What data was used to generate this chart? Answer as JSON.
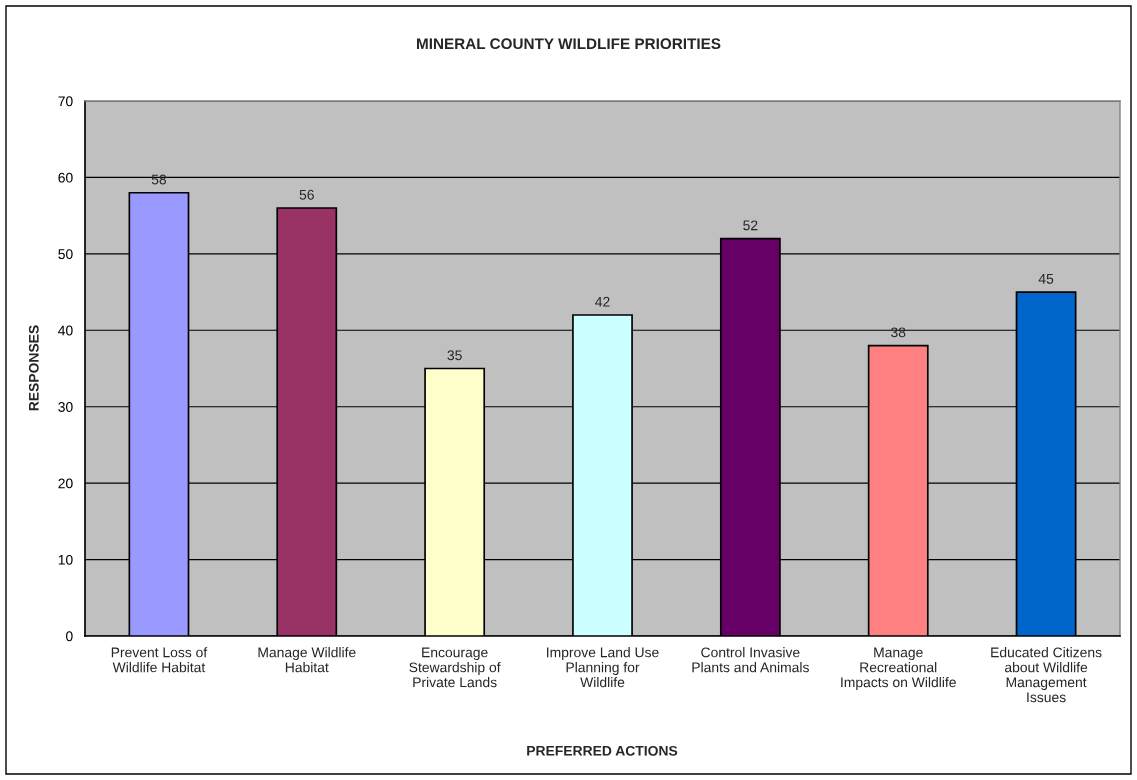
{
  "chart_data": {
    "type": "bar",
    "title": "MINERAL COUNTY WILDLIFE PRIORITIES",
    "xlabel": "PREFERRED ACTIONS",
    "ylabel": "RESPONSES",
    "categories": [
      "Prevent Loss of\nWildlife Habitat",
      "Manage Wildlife\nHabitat",
      "Encourage\nStewardship of\nPrivate Lands",
      "Improve Land Use\nPlanning for\nWildlife",
      "Control Invasive\nPlants and Animals",
      "Manage\nRecreational\nImpacts on Wildlife",
      "Educated Citizens\nabout Wildlife\nManagement\nIssues"
    ],
    "values": [
      58,
      56,
      35,
      42,
      52,
      38,
      45
    ],
    "colors": [
      "#9999ff",
      "#993366",
      "#ffffcc",
      "#ccffff",
      "#660066",
      "#ff8080",
      "#0066cc"
    ],
    "ylim": [
      0,
      70
    ],
    "yticks": [
      0,
      10,
      20,
      30,
      40,
      50,
      60,
      70
    ],
    "grid": "y",
    "data_labels": true
  }
}
